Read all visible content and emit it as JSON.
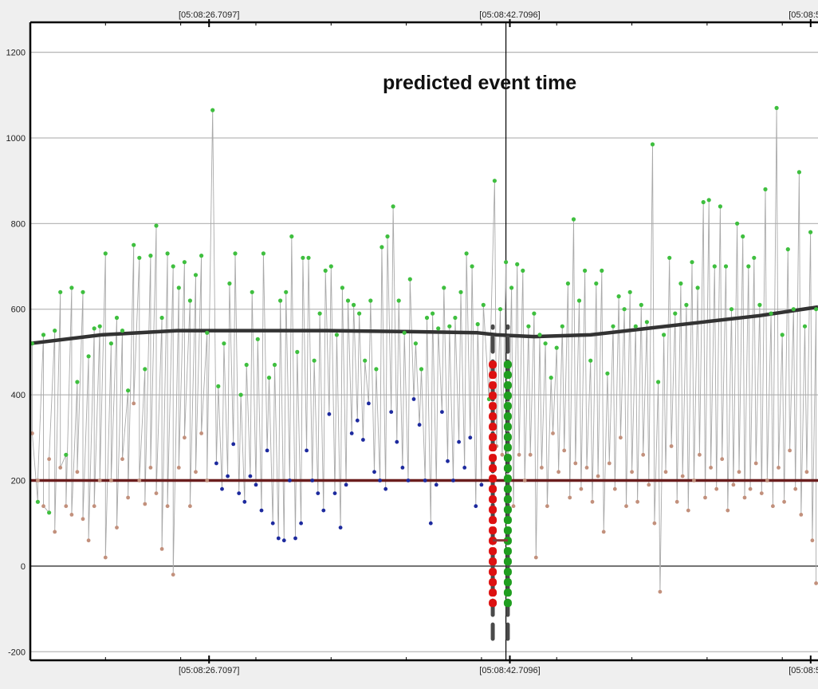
{
  "chart_data": {
    "type": "scatter",
    "title": "",
    "annotation": "predicted event time",
    "x_tick_labels_top": [
      "[05:08:26.7097]",
      "[05:08:42.7096]",
      "[05:08:58.7"
    ],
    "x_tick_labels_bottom": [
      "[05:08:26.7097]",
      "[05:08:42.7096]",
      "[05:08:58.7"
    ],
    "x_tick_seconds": [
      26.7097,
      42.7096,
      58.7095
    ],
    "xlim_seconds": [
      17.2,
      59.1
    ],
    "ylim": [
      -220,
      1270
    ],
    "y_ticks": [
      -200,
      0,
      200,
      400,
      600,
      800,
      1000,
      1200
    ],
    "grid": true,
    "event_time_seconds": 42.5,
    "colors": {
      "green_points": "#3fbf3f",
      "blue_points": "#1d2a9e",
      "brown_points": "#c2907c",
      "connector_line": "#a9a9a9",
      "trend_line": "#333333",
      "threshold_line": "#6b1e1e",
      "red_band": "#dd1111",
      "green_band": "#1f9e1f",
      "dashed_marker": "#4a4a4a",
      "event_line": "#000000",
      "grid": "#b9b9b9",
      "zero_line": "#444444"
    },
    "series": [
      {
        "role": "green-high-points",
        "color": "#3fbf3f",
        "points": [
          [
            17.3,
            520
          ],
          [
            17.6,
            150
          ],
          [
            17.9,
            540
          ],
          [
            18.2,
            125
          ],
          [
            18.5,
            550
          ],
          [
            18.8,
            640
          ],
          [
            19.1,
            260
          ],
          [
            19.4,
            650
          ],
          [
            19.7,
            430
          ],
          [
            20.0,
            640
          ],
          [
            20.3,
            490
          ],
          [
            20.6,
            555
          ],
          [
            20.9,
            560
          ],
          [
            21.2,
            730
          ],
          [
            21.5,
            520
          ],
          [
            21.8,
            580
          ],
          [
            22.1,
            550
          ],
          [
            22.4,
            410
          ],
          [
            22.7,
            750
          ],
          [
            23.0,
            720
          ],
          [
            23.3,
            460
          ],
          [
            23.6,
            725
          ],
          [
            23.9,
            795
          ],
          [
            24.2,
            580
          ],
          [
            24.5,
            730
          ],
          [
            24.8,
            700
          ],
          [
            25.1,
            650
          ],
          [
            25.4,
            710
          ],
          [
            25.7,
            620
          ],
          [
            26.0,
            680
          ],
          [
            26.3,
            725
          ],
          [
            26.6,
            545
          ],
          [
            26.9,
            1065
          ],
          [
            27.2,
            420
          ],
          [
            27.5,
            520
          ],
          [
            27.8,
            660
          ],
          [
            28.1,
            730
          ],
          [
            28.4,
            400
          ],
          [
            28.7,
            470
          ],
          [
            29.0,
            640
          ],
          [
            29.3,
            530
          ],
          [
            29.6,
            730
          ],
          [
            29.9,
            440
          ],
          [
            30.2,
            470
          ],
          [
            30.5,
            620
          ],
          [
            30.8,
            640
          ],
          [
            31.1,
            770
          ],
          [
            31.4,
            500
          ],
          [
            31.7,
            720
          ],
          [
            32.0,
            720
          ],
          [
            32.3,
            480
          ],
          [
            32.6,
            590
          ],
          [
            32.9,
            690
          ],
          [
            33.2,
            700
          ],
          [
            33.5,
            540
          ],
          [
            33.8,
            650
          ],
          [
            34.1,
            620
          ],
          [
            34.4,
            610
          ],
          [
            34.7,
            590
          ],
          [
            35.0,
            480
          ],
          [
            35.3,
            620
          ],
          [
            35.6,
            460
          ],
          [
            35.9,
            745
          ],
          [
            36.2,
            770
          ],
          [
            36.5,
            840
          ],
          [
            36.8,
            620
          ],
          [
            37.1,
            545
          ],
          [
            37.4,
            670
          ],
          [
            37.7,
            520
          ],
          [
            38.0,
            460
          ],
          [
            38.3,
            580
          ],
          [
            38.6,
            590
          ],
          [
            38.9,
            555
          ],
          [
            39.2,
            650
          ],
          [
            39.5,
            560
          ],
          [
            39.8,
            580
          ],
          [
            40.1,
            640
          ],
          [
            40.4,
            730
          ],
          [
            40.7,
            700
          ],
          [
            41.0,
            565
          ],
          [
            41.3,
            610
          ],
          [
            41.6,
            390
          ],
          [
            41.9,
            900
          ],
          [
            42.2,
            600
          ],
          [
            42.5,
            710
          ],
          [
            42.8,
            650
          ],
          [
            43.1,
            705
          ],
          [
            43.4,
            690
          ],
          [
            43.7,
            560
          ],
          [
            44.0,
            590
          ],
          [
            44.3,
            540
          ],
          [
            44.6,
            520
          ],
          [
            44.9,
            440
          ],
          [
            45.2,
            510
          ],
          [
            45.5,
            560
          ],
          [
            45.8,
            660
          ],
          [
            46.1,
            810
          ],
          [
            46.4,
            620
          ],
          [
            46.7,
            690
          ],
          [
            47.0,
            480
          ],
          [
            47.3,
            660
          ],
          [
            47.6,
            690
          ],
          [
            47.9,
            450
          ],
          [
            48.2,
            560
          ],
          [
            48.5,
            630
          ],
          [
            48.8,
            600
          ],
          [
            49.1,
            640
          ],
          [
            49.4,
            560
          ],
          [
            49.7,
            610
          ],
          [
            50.0,
            570
          ],
          [
            50.3,
            985
          ],
          [
            50.6,
            430
          ],
          [
            50.9,
            540
          ],
          [
            51.2,
            720
          ],
          [
            51.5,
            590
          ],
          [
            51.8,
            660
          ],
          [
            52.1,
            610
          ],
          [
            52.4,
            710
          ],
          [
            52.7,
            650
          ],
          [
            53.0,
            850
          ],
          [
            53.3,
            855
          ],
          [
            53.6,
            700
          ],
          [
            53.9,
            840
          ],
          [
            54.2,
            700
          ],
          [
            54.5,
            600
          ],
          [
            54.8,
            800
          ],
          [
            55.1,
            770
          ],
          [
            55.4,
            700
          ],
          [
            55.7,
            720
          ],
          [
            56.0,
            610
          ],
          [
            56.3,
            880
          ],
          [
            56.6,
            590
          ],
          [
            56.9,
            1070
          ],
          [
            57.2,
            540
          ],
          [
            57.5,
            740
          ],
          [
            57.8,
            600
          ],
          [
            58.1,
            920
          ],
          [
            58.4,
            560
          ],
          [
            58.7,
            780
          ],
          [
            59.0,
            600
          ]
        ]
      },
      {
        "role": "blue-points",
        "color": "#1d2a9e",
        "points": [
          [
            27.1,
            240
          ],
          [
            27.4,
            180
          ],
          [
            27.7,
            210
          ],
          [
            28.0,
            285
          ],
          [
            28.3,
            170
          ],
          [
            28.6,
            150
          ],
          [
            28.9,
            210
          ],
          [
            29.2,
            190
          ],
          [
            29.5,
            130
          ],
          [
            29.8,
            270
          ],
          [
            30.1,
            100
          ],
          [
            30.4,
            65
          ],
          [
            30.7,
            60
          ],
          [
            31.0,
            200
          ],
          [
            31.3,
            65
          ],
          [
            31.6,
            100
          ],
          [
            31.9,
            270
          ],
          [
            32.2,
            200
          ],
          [
            32.5,
            170
          ],
          [
            32.8,
            130
          ],
          [
            33.1,
            355
          ],
          [
            33.4,
            170
          ],
          [
            33.7,
            90
          ],
          [
            34.0,
            190
          ],
          [
            34.3,
            310
          ],
          [
            34.6,
            340
          ],
          [
            34.9,
            295
          ],
          [
            35.2,
            380
          ],
          [
            35.5,
            220
          ],
          [
            35.8,
            200
          ],
          [
            36.1,
            180
          ],
          [
            36.4,
            360
          ],
          [
            36.7,
            290
          ],
          [
            37.0,
            230
          ],
          [
            37.3,
            200
          ],
          [
            37.6,
            390
          ],
          [
            37.9,
            330
          ],
          [
            38.2,
            200
          ],
          [
            38.5,
            100
          ],
          [
            38.8,
            190
          ],
          [
            39.1,
            360
          ],
          [
            39.4,
            245
          ],
          [
            39.7,
            200
          ],
          [
            40.0,
            290
          ],
          [
            40.3,
            230
          ],
          [
            40.6,
            300
          ],
          [
            40.9,
            140
          ],
          [
            41.2,
            190
          ]
        ]
      },
      {
        "role": "brown-low-points",
        "color": "#c2907c",
        "points": [
          [
            17.3,
            310
          ],
          [
            17.6,
            200
          ],
          [
            17.9,
            140
          ],
          [
            18.2,
            250
          ],
          [
            18.5,
            80
          ],
          [
            18.8,
            230
          ],
          [
            19.1,
            140
          ],
          [
            19.4,
            120
          ],
          [
            19.7,
            220
          ],
          [
            20.0,
            110
          ],
          [
            20.3,
            60
          ],
          [
            20.6,
            140
          ],
          [
            20.9,
            200
          ],
          [
            21.2,
            20
          ],
          [
            21.5,
            200
          ],
          [
            21.8,
            90
          ],
          [
            22.1,
            250
          ],
          [
            22.4,
            160
          ],
          [
            22.7,
            380
          ],
          [
            23.0,
            200
          ],
          [
            23.3,
            145
          ],
          [
            23.6,
            230
          ],
          [
            23.9,
            170
          ],
          [
            24.2,
            40
          ],
          [
            24.5,
            140
          ],
          [
            24.8,
            -20
          ],
          [
            25.1,
            230
          ],
          [
            25.4,
            300
          ],
          [
            25.7,
            140
          ],
          [
            26.0,
            220
          ],
          [
            26.3,
            310
          ],
          [
            26.6,
            200
          ],
          [
            42.0,
            280
          ],
          [
            42.3,
            260
          ],
          [
            42.6,
            200
          ],
          [
            42.9,
            140
          ],
          [
            43.2,
            260
          ],
          [
            43.5,
            200
          ],
          [
            43.8,
            260
          ],
          [
            44.1,
            20
          ],
          [
            44.4,
            230
          ],
          [
            44.7,
            140
          ],
          [
            45.0,
            310
          ],
          [
            45.3,
            220
          ],
          [
            45.6,
            270
          ],
          [
            45.9,
            160
          ],
          [
            46.2,
            240
          ],
          [
            46.5,
            180
          ],
          [
            46.8,
            230
          ],
          [
            47.1,
            150
          ],
          [
            47.4,
            210
          ],
          [
            47.7,
            80
          ],
          [
            48.0,
            240
          ],
          [
            48.3,
            180
          ],
          [
            48.6,
            300
          ],
          [
            48.9,
            140
          ],
          [
            49.2,
            220
          ],
          [
            49.5,
            150
          ],
          [
            49.8,
            260
          ],
          [
            50.1,
            190
          ],
          [
            50.4,
            100
          ],
          [
            50.7,
            -60
          ],
          [
            51.0,
            220
          ],
          [
            51.3,
            280
          ],
          [
            51.6,
            150
          ],
          [
            51.9,
            210
          ],
          [
            52.2,
            130
          ],
          [
            52.5,
            200
          ],
          [
            52.8,
            260
          ],
          [
            53.1,
            160
          ],
          [
            53.4,
            230
          ],
          [
            53.7,
            180
          ],
          [
            54.0,
            250
          ],
          [
            54.3,
            130
          ],
          [
            54.6,
            190
          ],
          [
            54.9,
            220
          ],
          [
            55.2,
            160
          ],
          [
            55.5,
            180
          ],
          [
            55.8,
            240
          ],
          [
            56.1,
            170
          ],
          [
            56.4,
            200
          ],
          [
            56.7,
            140
          ],
          [
            57.0,
            230
          ],
          [
            57.3,
            150
          ],
          [
            57.6,
            270
          ],
          [
            57.9,
            180
          ],
          [
            58.2,
            120
          ],
          [
            58.5,
            220
          ],
          [
            58.8,
            60
          ],
          [
            59.0,
            -40
          ]
        ]
      },
      {
        "role": "trend-line",
        "color": "#333333",
        "points": [
          [
            17.2,
            520
          ],
          [
            21.0,
            540
          ],
          [
            25.0,
            550
          ],
          [
            29.0,
            550
          ],
          [
            33.0,
            550
          ],
          [
            37.0,
            548
          ],
          [
            41.0,
            545
          ],
          [
            42.0,
            540
          ],
          [
            44.0,
            536
          ],
          [
            47.0,
            540
          ],
          [
            50.0,
            555
          ],
          [
            53.0,
            570
          ],
          [
            56.0,
            585
          ],
          [
            59.1,
            605
          ]
        ]
      },
      {
        "role": "threshold-line",
        "color": "#6b1e1e",
        "points": [
          [
            17.2,
            200
          ],
          [
            59.1,
            200
          ]
        ]
      },
      {
        "role": "red-band",
        "color": "#dd1111",
        "x": 41.8,
        "y_range": [
          -100,
          480
        ]
      },
      {
        "role": "green-band",
        "color": "#1f9e1f",
        "x": 42.6,
        "y_range": [
          -100,
          480
        ]
      }
    ],
    "dashed_markers": [
      {
        "x": 41.8,
        "y_range": [
          -170,
          560
        ]
      },
      {
        "x": 42.6,
        "y_range": [
          -170,
          560
        ]
      }
    ]
  }
}
